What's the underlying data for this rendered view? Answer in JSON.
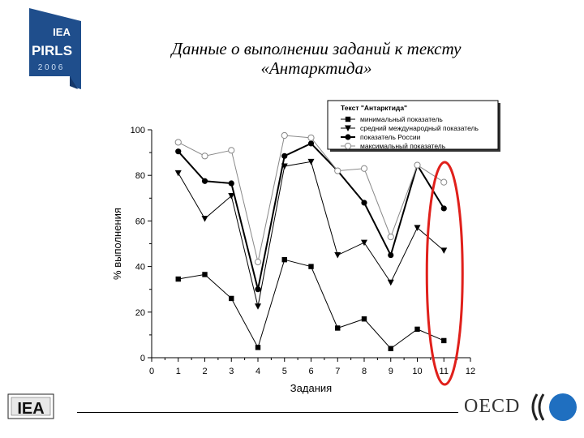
{
  "header": {
    "title_line1": "Данные о выполнении заданий к тексту",
    "title_line2": "«Антарктида»"
  },
  "logos": {
    "pirls": {
      "name": "PIRLS",
      "org": "IEA",
      "year": "2 0 0 6",
      "color": "#1f4e8c"
    },
    "iea_footer": "IEA",
    "oecd": "OECD",
    "oecd_color": "#1f6fc0"
  },
  "chart_data": {
    "type": "line",
    "xlabel": "Задания",
    "ylabel": "% выполнения",
    "xlim": [
      0,
      12
    ],
    "ylim": [
      0,
      100
    ],
    "xticks": [
      0,
      1,
      2,
      3,
      4,
      5,
      6,
      7,
      8,
      9,
      10,
      11,
      12
    ],
    "yticks": [
      0,
      20,
      40,
      60,
      80,
      100
    ],
    "grid": false,
    "legend": {
      "title": "Текст \"Антарктида\"",
      "position": "top-right"
    },
    "x": [
      1,
      2,
      3,
      4,
      5,
      6,
      7,
      8,
      9,
      10,
      11
    ],
    "series": [
      {
        "name": "минимальный показатель",
        "marker": "square",
        "values": [
          34.5,
          36.5,
          26,
          4.5,
          43,
          40,
          13,
          17,
          4,
          12.5,
          7.5
        ]
      },
      {
        "name": "средний международный показатель",
        "marker": "triangle-down",
        "values": [
          81,
          61,
          71,
          22.5,
          84,
          86,
          45,
          50.5,
          33,
          57,
          47
        ]
      },
      {
        "name": "показатель России",
        "marker": "circle-filled",
        "values": [
          90.5,
          77.5,
          76.5,
          30,
          88.5,
          94,
          82,
          68,
          45,
          84.5,
          65.5
        ]
      },
      {
        "name": "максимальный показатель",
        "marker": "circle-open",
        "values": [
          94.5,
          88.5,
          91,
          42,
          97.5,
          96.5,
          82,
          83,
          53,
          84.5,
          77
        ]
      }
    ],
    "highlight": {
      "x": 11,
      "shape": "ellipse",
      "color": "#e0201b"
    }
  }
}
